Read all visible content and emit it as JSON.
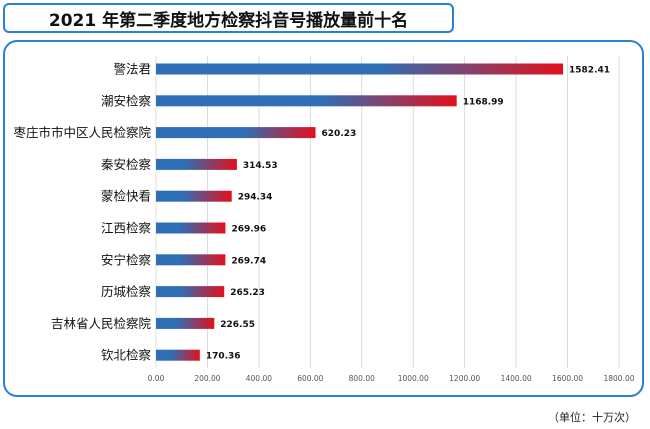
{
  "page": {
    "title": "2021 年第二季度地方检察抖音号播放量前十名",
    "unit_note": "（单位：十万次）"
  },
  "colors": {
    "border": "#2b7fd4",
    "bar_blue": "#2e6fb5",
    "bar_red": "#e3101b",
    "grid": "#d4d4d4"
  },
  "chart_data": {
    "type": "bar",
    "orientation": "horizontal",
    "categories": [
      "警法君",
      "潮安检察",
      "枣庄市市中区人民检察院",
      "秦安检察",
      "蒙检快看",
      "江西检察",
      "安宁检察",
      "历城检察",
      "吉林省人民检察院",
      "钦北检察"
    ],
    "values": [
      1582.41,
      1168.99,
      620.23,
      314.53,
      294.34,
      269.96,
      269.74,
      265.23,
      226.55,
      170.36
    ],
    "value_labels": [
      "1582.41",
      "1168.99",
      "620.23",
      "314.53",
      "294.34",
      "269.96",
      "269.74",
      "265.23",
      "226.55",
      "170.36"
    ],
    "xlim": [
      0,
      1800
    ],
    "xticks": [
      "0.00",
      "200.00",
      "400.00",
      "600.00",
      "800.00",
      "1000.00",
      "1200.00",
      "1400.00",
      "1600.00",
      "1800.00"
    ],
    "grid": true
  }
}
